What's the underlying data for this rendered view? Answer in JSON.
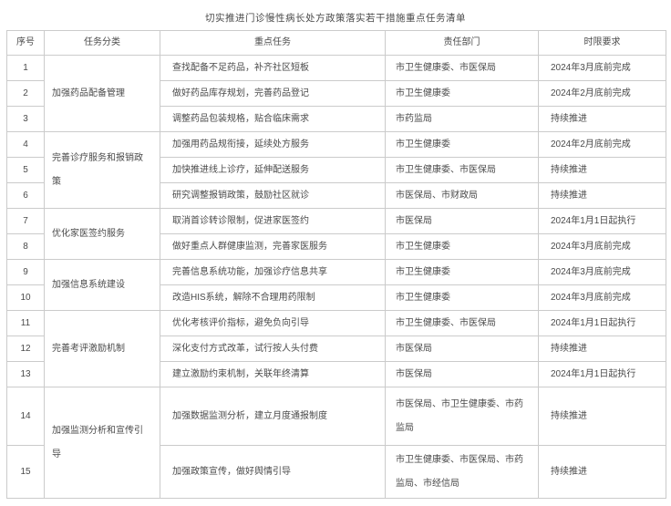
{
  "title": "切实推进门诊慢性病长处方政策落实若干措施重点任务清单",
  "table": {
    "headers": [
      "序号",
      "任务分类",
      "重点任务",
      "责任部门",
      "时限要求"
    ],
    "rows": [
      {
        "num": "1",
        "category": "加强药品配备管理",
        "task": "查找配备不足药品，补齐社区短板",
        "dept": "市卫生健康委、市医保局",
        "time": "2024年3月底前完成"
      },
      {
        "num": "2",
        "task": "做好药品库存规划，完善药品登记",
        "dept": "市卫生健康委",
        "time": "2024年2月底前完成"
      },
      {
        "num": "3",
        "task": "调整药品包装规格，贴合临床需求",
        "dept": "市药监局",
        "time": "持续推进"
      },
      {
        "num": "4",
        "category": "完善诊疗服务和报销政策",
        "task": "加强用药品规衔接，延续处方服务",
        "dept": "市卫生健康委",
        "time": "2024年2月底前完成"
      },
      {
        "num": "5",
        "task": "加快推进线上诊疗，延伸配送服务",
        "dept": "市卫生健康委、市医保局",
        "time": "持续推进"
      },
      {
        "num": "6",
        "task": "研究调整报销政策，鼓励社区就诊",
        "dept": "市医保局、市财政局",
        "time": "持续推进"
      },
      {
        "num": "7",
        "category": "优化家医签约服务",
        "task": "取消首诊转诊限制，促进家医签约",
        "dept": "市医保局",
        "time": "2024年1月1日起执行"
      },
      {
        "num": "8",
        "task": "做好重点人群健康监测，完善家医服务",
        "dept": "市卫生健康委",
        "time": "2024年3月底前完成"
      },
      {
        "num": "9",
        "category": "加强信息系统建设",
        "task": "完善信息系统功能，加强诊疗信息共享",
        "dept": "市卫生健康委",
        "time": "2024年3月底前完成"
      },
      {
        "num": "10",
        "task": "改造HIS系统，解除不合理用药限制",
        "dept": "市卫生健康委",
        "time": "2024年3月底前完成"
      },
      {
        "num": "11",
        "category": "完善考评激励机制",
        "task": "优化考核评价指标，避免负向引导",
        "dept": "市卫生健康委、市医保局",
        "time": "2024年1月1日起执行"
      },
      {
        "num": "12",
        "task": "深化支付方式改革，试行按人头付费",
        "dept": "市医保局",
        "time": "持续推进"
      },
      {
        "num": "13",
        "task": "建立激励约束机制，关联年终清算",
        "dept": "市医保局",
        "time": "2024年1月1日起执行"
      },
      {
        "num": "14",
        "category": "加强监测分析和宣传引导",
        "task": "加强数据监测分析，建立月度通报制度",
        "dept": "市医保局、市卫生健康委、市药监局",
        "time": "持续推进"
      },
      {
        "num": "15",
        "task": "加强政策宣传，做好舆情引导",
        "dept": "市卫生健康委、市医保局、市药监局、市经信局",
        "time": "持续推进"
      }
    ]
  }
}
